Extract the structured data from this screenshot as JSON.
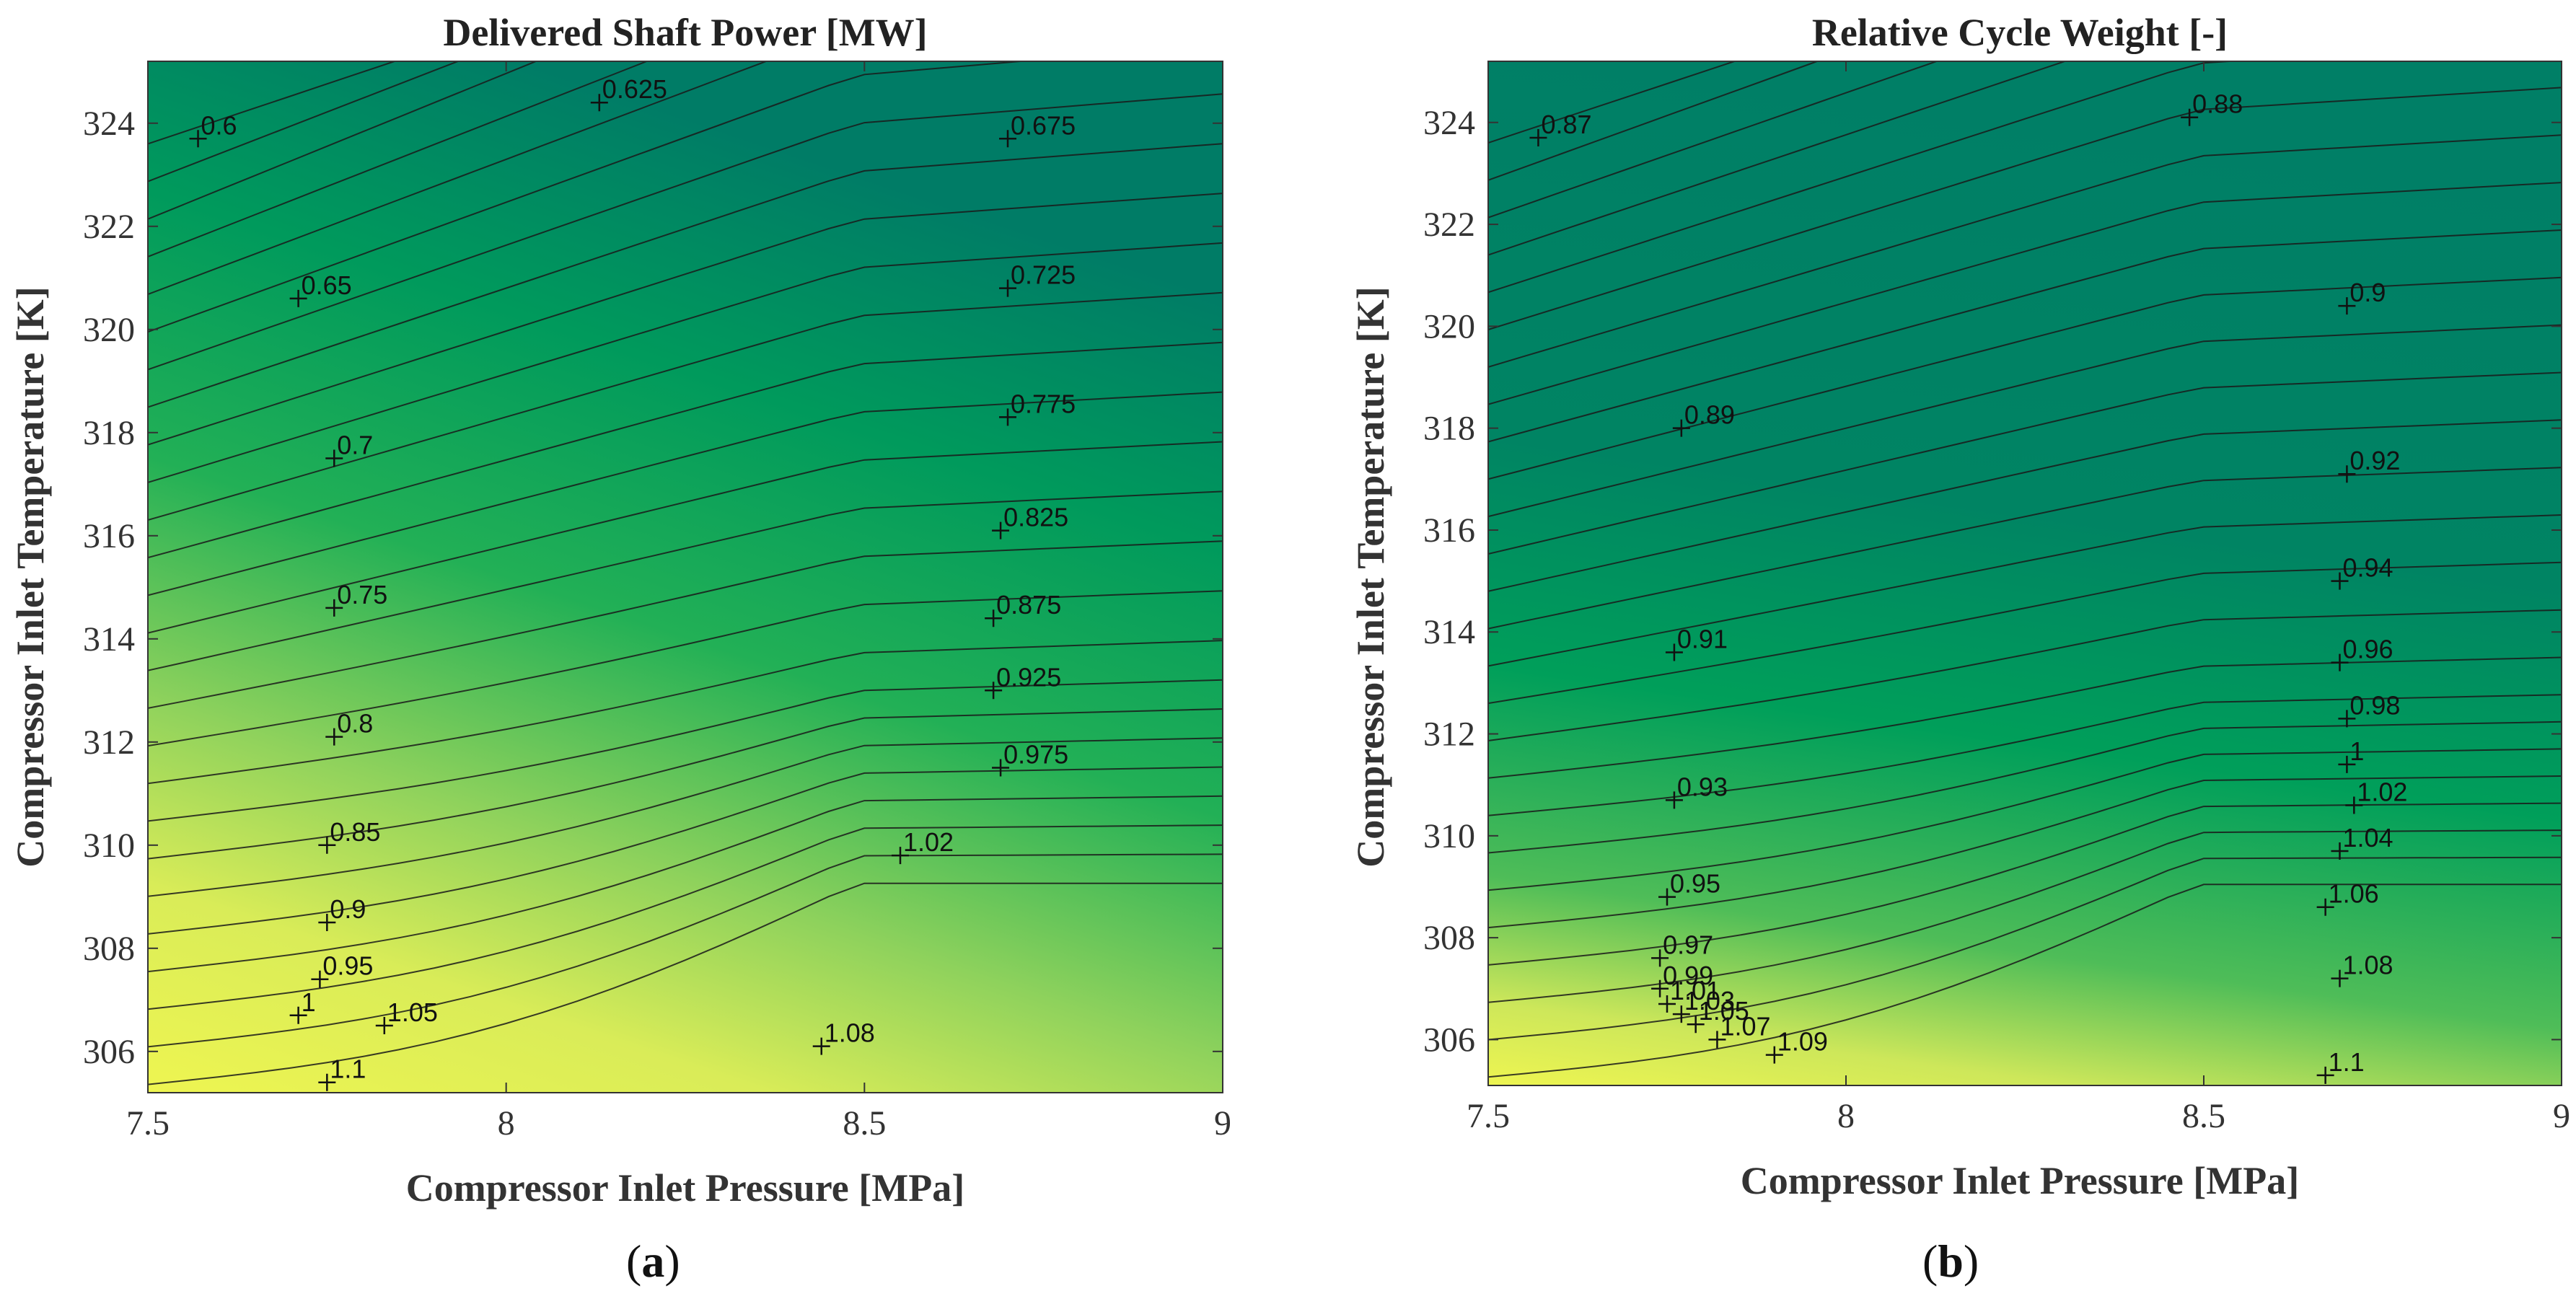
{
  "chart_data": [
    {
      "type": "contour",
      "panel": "(a)",
      "title": "Delivered Shaft Power [MW]",
      "xlabel": "Compressor Inlet Pressure [MPa]",
      "ylabel": "Compressor Inlet Temperature [K]",
      "xlim": [
        7.5,
        9
      ],
      "ylim": [
        305.2,
        325.2
      ],
      "xticks": [
        7.5,
        8,
        8.5,
        9
      ],
      "xtick_labels": [
        "7.5",
        "8",
        "8.5",
        "9"
      ],
      "yticks": [
        306,
        308,
        310,
        312,
        314,
        316,
        318,
        320,
        322,
        324
      ],
      "ytick_labels": [
        "306",
        "308",
        "310",
        "312",
        "314",
        "316",
        "318",
        "320",
        "322",
        "324"
      ],
      "contour_labels": [
        {
          "text": "0.6",
          "x": 7.57,
          "y": 323.7
        },
        {
          "text": "0.625",
          "x": 8.13,
          "y": 324.4
        },
        {
          "text": "0.675",
          "x": 8.7,
          "y": 323.7
        },
        {
          "text": "0.65",
          "x": 7.71,
          "y": 320.6
        },
        {
          "text": "0.725",
          "x": 8.7,
          "y": 320.8
        },
        {
          "text": "0.7",
          "x": 7.76,
          "y": 317.5
        },
        {
          "text": "0.775",
          "x": 8.7,
          "y": 318.3
        },
        {
          "text": "0.825",
          "x": 8.69,
          "y": 316.1
        },
        {
          "text": "0.75",
          "x": 7.76,
          "y": 314.6
        },
        {
          "text": "0.875",
          "x": 8.68,
          "y": 314.4
        },
        {
          "text": "0.925",
          "x": 8.68,
          "y": 313.0
        },
        {
          "text": "0.8",
          "x": 7.76,
          "y": 312.1
        },
        {
          "text": "0.975",
          "x": 8.69,
          "y": 311.5
        },
        {
          "text": "0.85",
          "x": 7.75,
          "y": 310.0
        },
        {
          "text": "1.02",
          "x": 8.55,
          "y": 309.8
        },
        {
          "text": "0.9",
          "x": 7.75,
          "y": 308.5
        },
        {
          "text": "0.95",
          "x": 7.74,
          "y": 307.4
        },
        {
          "text": "1",
          "x": 7.71,
          "y": 306.7
        },
        {
          "text": "1.05",
          "x": 7.83,
          "y": 306.5
        },
        {
          "text": "1.08",
          "x": 8.44,
          "y": 306.1
        },
        {
          "text": "1.1",
          "x": 7.75,
          "y": 305.4
        }
      ],
      "colormap": [
        "#007e66",
        "#00b356",
        "#c7e45a",
        "#eef551"
      ]
    },
    {
      "type": "contour",
      "panel": "(b)",
      "title": "Relative Cycle Weight [-]",
      "xlabel": "Compressor Inlet Pressure [MPa]",
      "ylabel": "Compressor Inlet Temperature [K]",
      "xlim": [
        7.5,
        9
      ],
      "ylim": [
        305.1,
        325.2
      ],
      "xticks": [
        7.5,
        8,
        8.5,
        9
      ],
      "xtick_labels": [
        "7.5",
        "8",
        "8.5",
        "9"
      ],
      "yticks": [
        306,
        308,
        310,
        312,
        314,
        316,
        318,
        320,
        322,
        324
      ],
      "ytick_labels": [
        "306",
        "308",
        "310",
        "312",
        "314",
        "316",
        "318",
        "320",
        "322",
        "324"
      ],
      "contour_labels": [
        {
          "text": "0.87",
          "x": 7.57,
          "y": 323.7
        },
        {
          "text": "0.88",
          "x": 8.48,
          "y": 324.1
        },
        {
          "text": "0.9",
          "x": 8.7,
          "y": 320.4
        },
        {
          "text": "0.89",
          "x": 7.77,
          "y": 318.0
        },
        {
          "text": "0.92",
          "x": 8.7,
          "y": 317.1
        },
        {
          "text": "0.94",
          "x": 8.69,
          "y": 315.0
        },
        {
          "text": "0.91",
          "x": 7.76,
          "y": 313.6
        },
        {
          "text": "0.96",
          "x": 8.69,
          "y": 313.4
        },
        {
          "text": "0.98",
          "x": 8.7,
          "y": 312.3
        },
        {
          "text": "1",
          "x": 8.7,
          "y": 311.4
        },
        {
          "text": "0.93",
          "x": 7.76,
          "y": 310.7
        },
        {
          "text": "1.02",
          "x": 8.71,
          "y": 310.6
        },
        {
          "text": "1.04",
          "x": 8.69,
          "y": 309.7
        },
        {
          "text": "0.95",
          "x": 7.75,
          "y": 308.8
        },
        {
          "text": "1.06",
          "x": 8.67,
          "y": 308.6
        },
        {
          "text": "0.97",
          "x": 7.74,
          "y": 307.6
        },
        {
          "text": "1.08",
          "x": 8.69,
          "y": 307.2
        },
        {
          "text": "0.99",
          "x": 7.74,
          "y": 307.0
        },
        {
          "text": "1.01",
          "x": 7.75,
          "y": 306.7
        },
        {
          "text": "1.03",
          "x": 7.77,
          "y": 306.5
        },
        {
          "text": "1.05",
          "x": 7.79,
          "y": 306.3
        },
        {
          "text": "1.07",
          "x": 7.82,
          "y": 306.0
        },
        {
          "text": "1.09",
          "x": 7.9,
          "y": 305.7
        },
        {
          "text": "1.1",
          "x": 8.67,
          "y": 305.3
        }
      ],
      "colormap": [
        "#007e66",
        "#00b356",
        "#c7e45a",
        "#eef551"
      ]
    }
  ],
  "captions": {
    "a": {
      "open": "(",
      "letter": "a",
      "close": ")"
    },
    "b": {
      "open": "(",
      "letter": "b",
      "close": ")"
    }
  }
}
